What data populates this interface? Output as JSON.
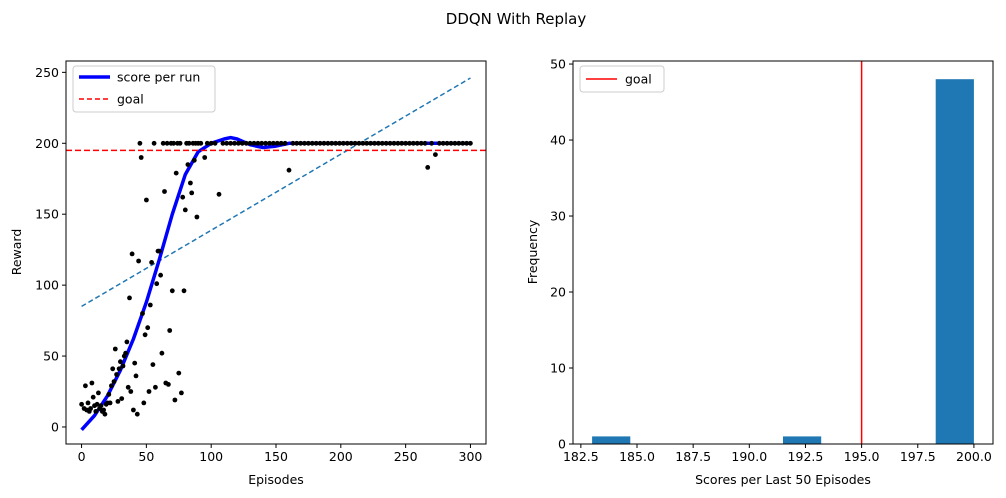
{
  "figure": {
    "title": "DDQN With Replay"
  },
  "chart_data": [
    {
      "type": "scatter",
      "xlabel": "Episodes",
      "ylabel": "Reward",
      "xlim": [
        -12,
        312
      ],
      "ylim": [
        -12,
        258
      ],
      "xticks": [
        0,
        50,
        100,
        150,
        200,
        250,
        300
      ],
      "yticks": [
        0,
        50,
        100,
        150,
        200,
        250
      ],
      "grid": false,
      "legend": {
        "placement": "top-left",
        "entries": [
          "score per run",
          "goal"
        ]
      },
      "series": [
        {
          "name": "score per run",
          "kind": "line",
          "color": "#0000ff",
          "x": [
            0,
            10,
            20,
            30,
            40,
            50,
            60,
            70,
            80,
            90,
            100,
            110,
            115,
            120,
            130,
            140,
            150,
            160,
            170,
            180,
            200,
            220,
            250,
            280,
            300
          ],
          "y": [
            -2,
            8,
            22,
            40,
            62,
            88,
            118,
            150,
            178,
            194,
            200,
            203,
            204,
            203,
            199,
            197,
            198,
            200,
            200,
            200,
            200,
            200,
            200,
            200,
            200
          ]
        },
        {
          "name": "trend",
          "kind": "dashed-line",
          "color": "#1f77b4",
          "x": [
            0,
            300
          ],
          "y": [
            85,
            246
          ]
        },
        {
          "name": "goal",
          "kind": "hline",
          "color": "#ff0000",
          "y": 195
        },
        {
          "name": "episodes",
          "kind": "points",
          "color": "#000000",
          "points": [
            [
              0,
              16
            ],
            [
              2,
              13
            ],
            [
              3,
              29
            ],
            [
              4,
              12
            ],
            [
              5,
              17
            ],
            [
              6,
              11
            ],
            [
              7,
              13
            ],
            [
              8,
              31
            ],
            [
              9,
              21
            ],
            [
              10,
              15
            ],
            [
              11,
              11
            ],
            [
              12,
              16
            ],
            [
              13,
              24
            ],
            [
              14,
              13
            ],
            [
              15,
              15
            ],
            [
              16,
              11
            ],
            [
              17,
              12
            ],
            [
              18,
              9
            ],
            [
              19,
              16
            ],
            [
              20,
              17
            ],
            [
              21,
              23
            ],
            [
              22,
              17
            ],
            [
              23,
              29
            ],
            [
              24,
              41
            ],
            [
              25,
              32
            ],
            [
              26,
              55
            ],
            [
              27,
              37
            ],
            [
              28,
              18
            ],
            [
              29,
              41
            ],
            [
              30,
              46
            ],
            [
              31,
              20
            ],
            [
              32,
              43
            ],
            [
              33,
              50
            ],
            [
              34,
              52
            ],
            [
              35,
              60
            ],
            [
              36,
              28
            ],
            [
              37,
              91
            ],
            [
              38,
              25
            ],
            [
              39,
              122
            ],
            [
              40,
              12
            ],
            [
              41,
              45
            ],
            [
              42,
              36
            ],
            [
              43,
              9
            ],
            [
              44,
              117
            ],
            [
              45,
              200
            ],
            [
              46,
              190
            ],
            [
              47,
              80
            ],
            [
              48,
              17
            ],
            [
              49,
              65
            ],
            [
              50,
              160
            ],
            [
              51,
              70
            ],
            [
              52,
              25
            ],
            [
              53,
              86
            ],
            [
              54,
              116
            ],
            [
              55,
              44
            ],
            [
              56,
              200
            ],
            [
              57,
              28
            ],
            [
              58,
              101
            ],
            [
              59,
              124
            ],
            [
              60,
              124
            ],
            [
              61,
              107
            ],
            [
              62,
              52
            ],
            [
              63,
              200
            ],
            [
              64,
              166
            ],
            [
              65,
              31
            ],
            [
              66,
              200
            ],
            [
              67,
              30
            ],
            [
              68,
              68
            ],
            [
              69,
              200
            ],
            [
              70,
              96
            ],
            [
              71,
              200
            ],
            [
              72,
              19
            ],
            [
              73,
              179
            ],
            [
              74,
              200
            ],
            [
              75,
              38
            ],
            [
              76,
              200
            ],
            [
              77,
              24
            ],
            [
              78,
              162
            ],
            [
              79,
              96
            ],
            [
              80,
              153
            ],
            [
              81,
              200
            ],
            [
              82,
              185
            ],
            [
              83,
              200
            ],
            [
              84,
              172
            ],
            [
              85,
              165
            ],
            [
              86,
              200
            ],
            [
              87,
              188
            ],
            [
              88,
              200
            ],
            [
              89,
              148
            ],
            [
              90,
              200
            ],
            [
              92,
              200
            ],
            [
              95,
              190
            ],
            [
              97,
              200
            ],
            [
              100,
              200
            ],
            [
              103,
              200
            ],
            [
              106,
              164
            ],
            [
              109,
              200
            ],
            [
              112,
              200
            ],
            [
              115,
              200
            ],
            [
              118,
              200
            ],
            [
              121,
              200
            ],
            [
              124,
              200
            ],
            [
              127,
              200
            ],
            [
              130,
              200
            ],
            [
              133,
              200
            ],
            [
              136,
              200
            ],
            [
              139,
              200
            ],
            [
              142,
              200
            ],
            [
              145,
              200
            ],
            [
              148,
              200
            ],
            [
              151,
              200
            ],
            [
              154,
              200
            ],
            [
              157,
              200
            ],
            [
              160,
              181
            ],
            [
              163,
              200
            ],
            [
              166,
              200
            ],
            [
              169,
              200
            ],
            [
              172,
              200
            ],
            [
              175,
              200
            ],
            [
              178,
              200
            ],
            [
              181,
              200
            ],
            [
              184,
              200
            ],
            [
              187,
              200
            ],
            [
              190,
              200
            ],
            [
              193,
              200
            ],
            [
              196,
              200
            ],
            [
              199,
              200
            ],
            [
              202,
              200
            ],
            [
              205,
              200
            ],
            [
              208,
              200
            ],
            [
              211,
              200
            ],
            [
              214,
              200
            ],
            [
              217,
              200
            ],
            [
              220,
              200
            ],
            [
              223,
              200
            ],
            [
              226,
              200
            ],
            [
              229,
              200
            ],
            [
              232,
              200
            ],
            [
              235,
              200
            ],
            [
              238,
              200
            ],
            [
              241,
              200
            ],
            [
              244,
              200
            ],
            [
              247,
              200
            ],
            [
              250,
              200
            ],
            [
              253,
              200
            ],
            [
              256,
              200
            ],
            [
              259,
              200
            ],
            [
              262,
              200
            ],
            [
              265,
              200
            ],
            [
              267,
              183
            ],
            [
              270,
              200
            ],
            [
              273,
              192
            ],
            [
              276,
              200
            ],
            [
              279,
              200
            ],
            [
              282,
              200
            ],
            [
              285,
              200
            ],
            [
              288,
              200
            ],
            [
              291,
              200
            ],
            [
              294,
              200
            ],
            [
              297,
              200
            ],
            [
              300,
              200
            ]
          ]
        }
      ]
    },
    {
      "type": "bar",
      "subtype": "histogram",
      "xlabel": "Scores per Last 50 Episodes",
      "ylabel": "Frequency",
      "xlim": [
        182.15,
        200.85
      ],
      "ylim": [
        0,
        50.4
      ],
      "xticks": [
        "182.5",
        "185.0",
        "187.5",
        "190.0",
        "192.5",
        "195.0",
        "197.5",
        "200.0"
      ],
      "xtick_values": [
        182.5,
        185.0,
        187.5,
        190.0,
        192.5,
        195.0,
        197.5,
        200.0
      ],
      "yticks": [
        0,
        10,
        20,
        30,
        40,
        50
      ],
      "grid": false,
      "legend": {
        "placement": "top-left",
        "entries": [
          "goal"
        ]
      },
      "bar_color": "#1f77b4",
      "bins": [
        {
          "start": 183.0,
          "end": 184.7,
          "count": 1
        },
        {
          "start": 184.7,
          "end": 186.4,
          "count": 0
        },
        {
          "start": 186.4,
          "end": 188.1,
          "count": 0
        },
        {
          "start": 188.1,
          "end": 189.8,
          "count": 0
        },
        {
          "start": 189.8,
          "end": 191.5,
          "count": 0
        },
        {
          "start": 191.5,
          "end": 193.2,
          "count": 1
        },
        {
          "start": 193.2,
          "end": 194.9,
          "count": 0
        },
        {
          "start": 194.9,
          "end": 196.6,
          "count": 0
        },
        {
          "start": 196.6,
          "end": 198.3,
          "count": 0
        },
        {
          "start": 198.3,
          "end": 200.0,
          "count": 48
        }
      ],
      "goal": {
        "name": "goal",
        "x": 195,
        "color": "#ff0000"
      }
    }
  ]
}
